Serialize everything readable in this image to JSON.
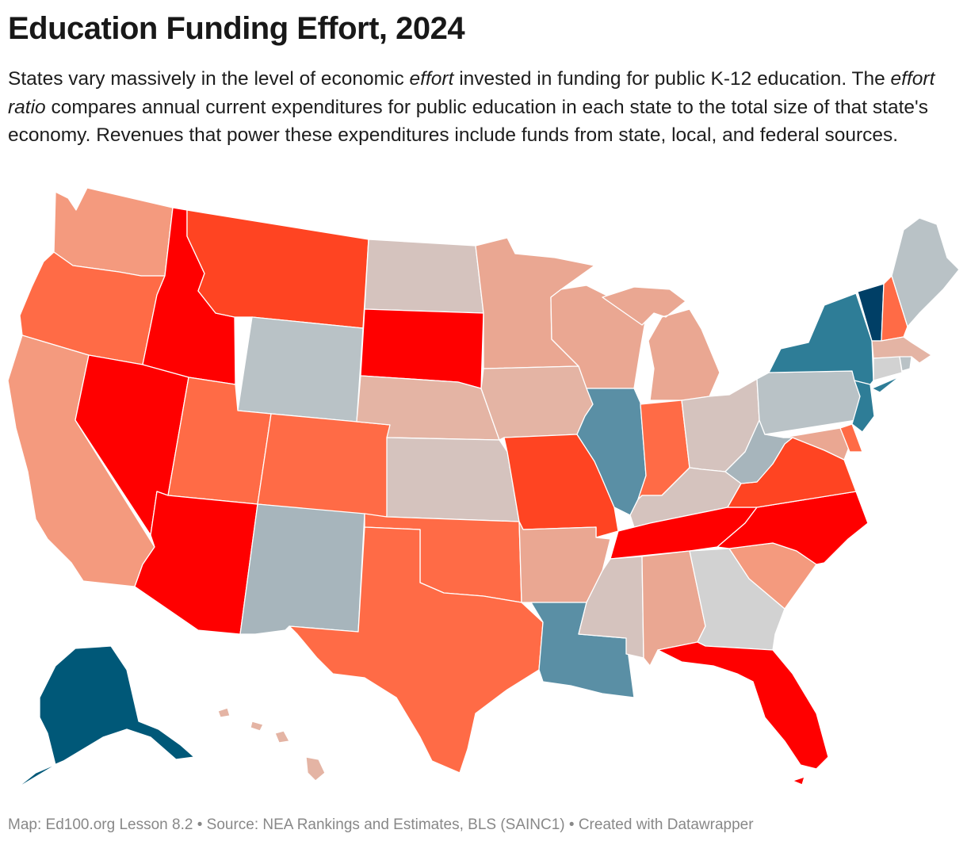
{
  "header": {
    "title": "Education Funding Effort, 2024",
    "desc_1": "States vary massively in the level of economic ",
    "desc_em_1": "effort",
    "desc_2": " invested in funding for public K-12 education. The ",
    "desc_em_2": "effort ratio",
    "desc_3": " compares annual current expenditures for public education in each state to the total size of that state's economy. Revenues that power these expenditures include funds from state, local, and federal sources."
  },
  "footer": {
    "text": "Map: Ed100.org Lesson 8.2 • Source: NEA Rankings and Estimates, BLS (SAINC1) • Created with Datawrapper"
  },
  "colors": {
    "red": "#ff0000",
    "orange_red": "#ff4422",
    "orange": "#ff6b46",
    "salmon": "#f49a7e",
    "light_salmon": "#eaa792",
    "pale_salmon": "#e4b4a4",
    "pinkish_gray": "#d5c3be",
    "light_gray": "#d2d2d2",
    "gray_blue": "#b9c2c6",
    "blue_gray": "#a7b5bc",
    "steel_blue": "#5a8fa5",
    "teal": "#2e7d97",
    "dark_teal": "#005878",
    "navy": "#003f66"
  },
  "states": {
    "WA": "salmon",
    "OR": "orange",
    "CA": "salmon",
    "ID": "red",
    "NV": "red",
    "MT": "orange_red",
    "WY": "gray_blue",
    "UT": "orange",
    "AZ": "red",
    "CO": "orange",
    "NM": "blue_gray",
    "ND": "pinkish_gray",
    "SD": "red",
    "NE": "pale_salmon",
    "KS": "pinkish_gray",
    "OK": "orange",
    "TX": "orange",
    "MN": "light_salmon",
    "IA": "pale_salmon",
    "MO": "orange_red",
    "AR": "light_salmon",
    "LA": "steel_blue",
    "WI": "light_salmon",
    "IL": "steel_blue",
    "MI": "light_salmon",
    "IN": "orange",
    "OH": "pinkish_gray",
    "KY": "pinkish_gray",
    "TN": "red",
    "MS": "pinkish_gray",
    "AL": "light_salmon",
    "GA": "light_gray",
    "FL": "red",
    "SC": "salmon",
    "NC": "red",
    "VA": "orange_red",
    "WV": "blue_gray",
    "PA": "gray_blue",
    "NY": "teal",
    "VT": "navy",
    "NH": "orange",
    "ME": "gray_blue",
    "MA": "pale_salmon",
    "CT": "light_gray",
    "RI": "gray_blue",
    "NJ": "teal",
    "DE": "orange",
    "MD": "light_salmon",
    "AK": "dark_teal",
    "HI": "pale_salmon"
  }
}
